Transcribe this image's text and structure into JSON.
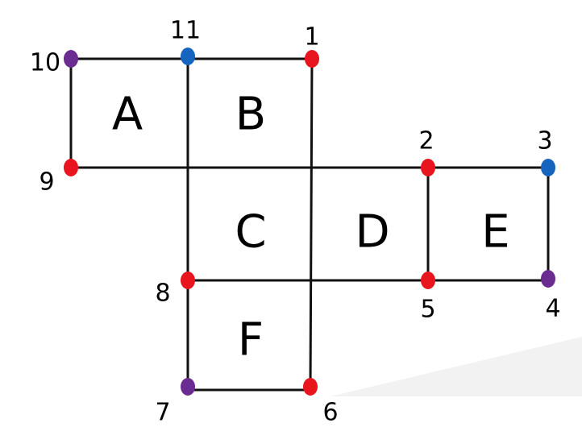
{
  "diagram": {
    "faces": [
      {
        "id": "A",
        "label": "A"
      },
      {
        "id": "B",
        "label": "B"
      },
      {
        "id": "C",
        "label": "C"
      },
      {
        "id": "D",
        "label": "D"
      },
      {
        "id": "E",
        "label": "E"
      },
      {
        "id": "F",
        "label": "F"
      }
    ],
    "vertices": [
      {
        "id": "v1",
        "label": "1",
        "color": "#e8141e"
      },
      {
        "id": "v2",
        "label": "2",
        "color": "#e8141e"
      },
      {
        "id": "v3",
        "label": "3",
        "color": "#1565c0"
      },
      {
        "id": "v4",
        "label": "4",
        "color": "#6a2c91"
      },
      {
        "id": "v5",
        "label": "5",
        "color": "#e8141e"
      },
      {
        "id": "v6",
        "label": "6",
        "color": "#e8141e"
      },
      {
        "id": "v7",
        "label": "7",
        "color": "#6a2c91"
      },
      {
        "id": "v8",
        "label": "8",
        "color": "#e8141e"
      },
      {
        "id": "v9",
        "label": "9",
        "color": "#e8141e"
      },
      {
        "id": "v10",
        "label": "10",
        "color": "#6a2c91"
      },
      {
        "id": "v11",
        "label": "11",
        "color": "#1565c0"
      }
    ]
  }
}
